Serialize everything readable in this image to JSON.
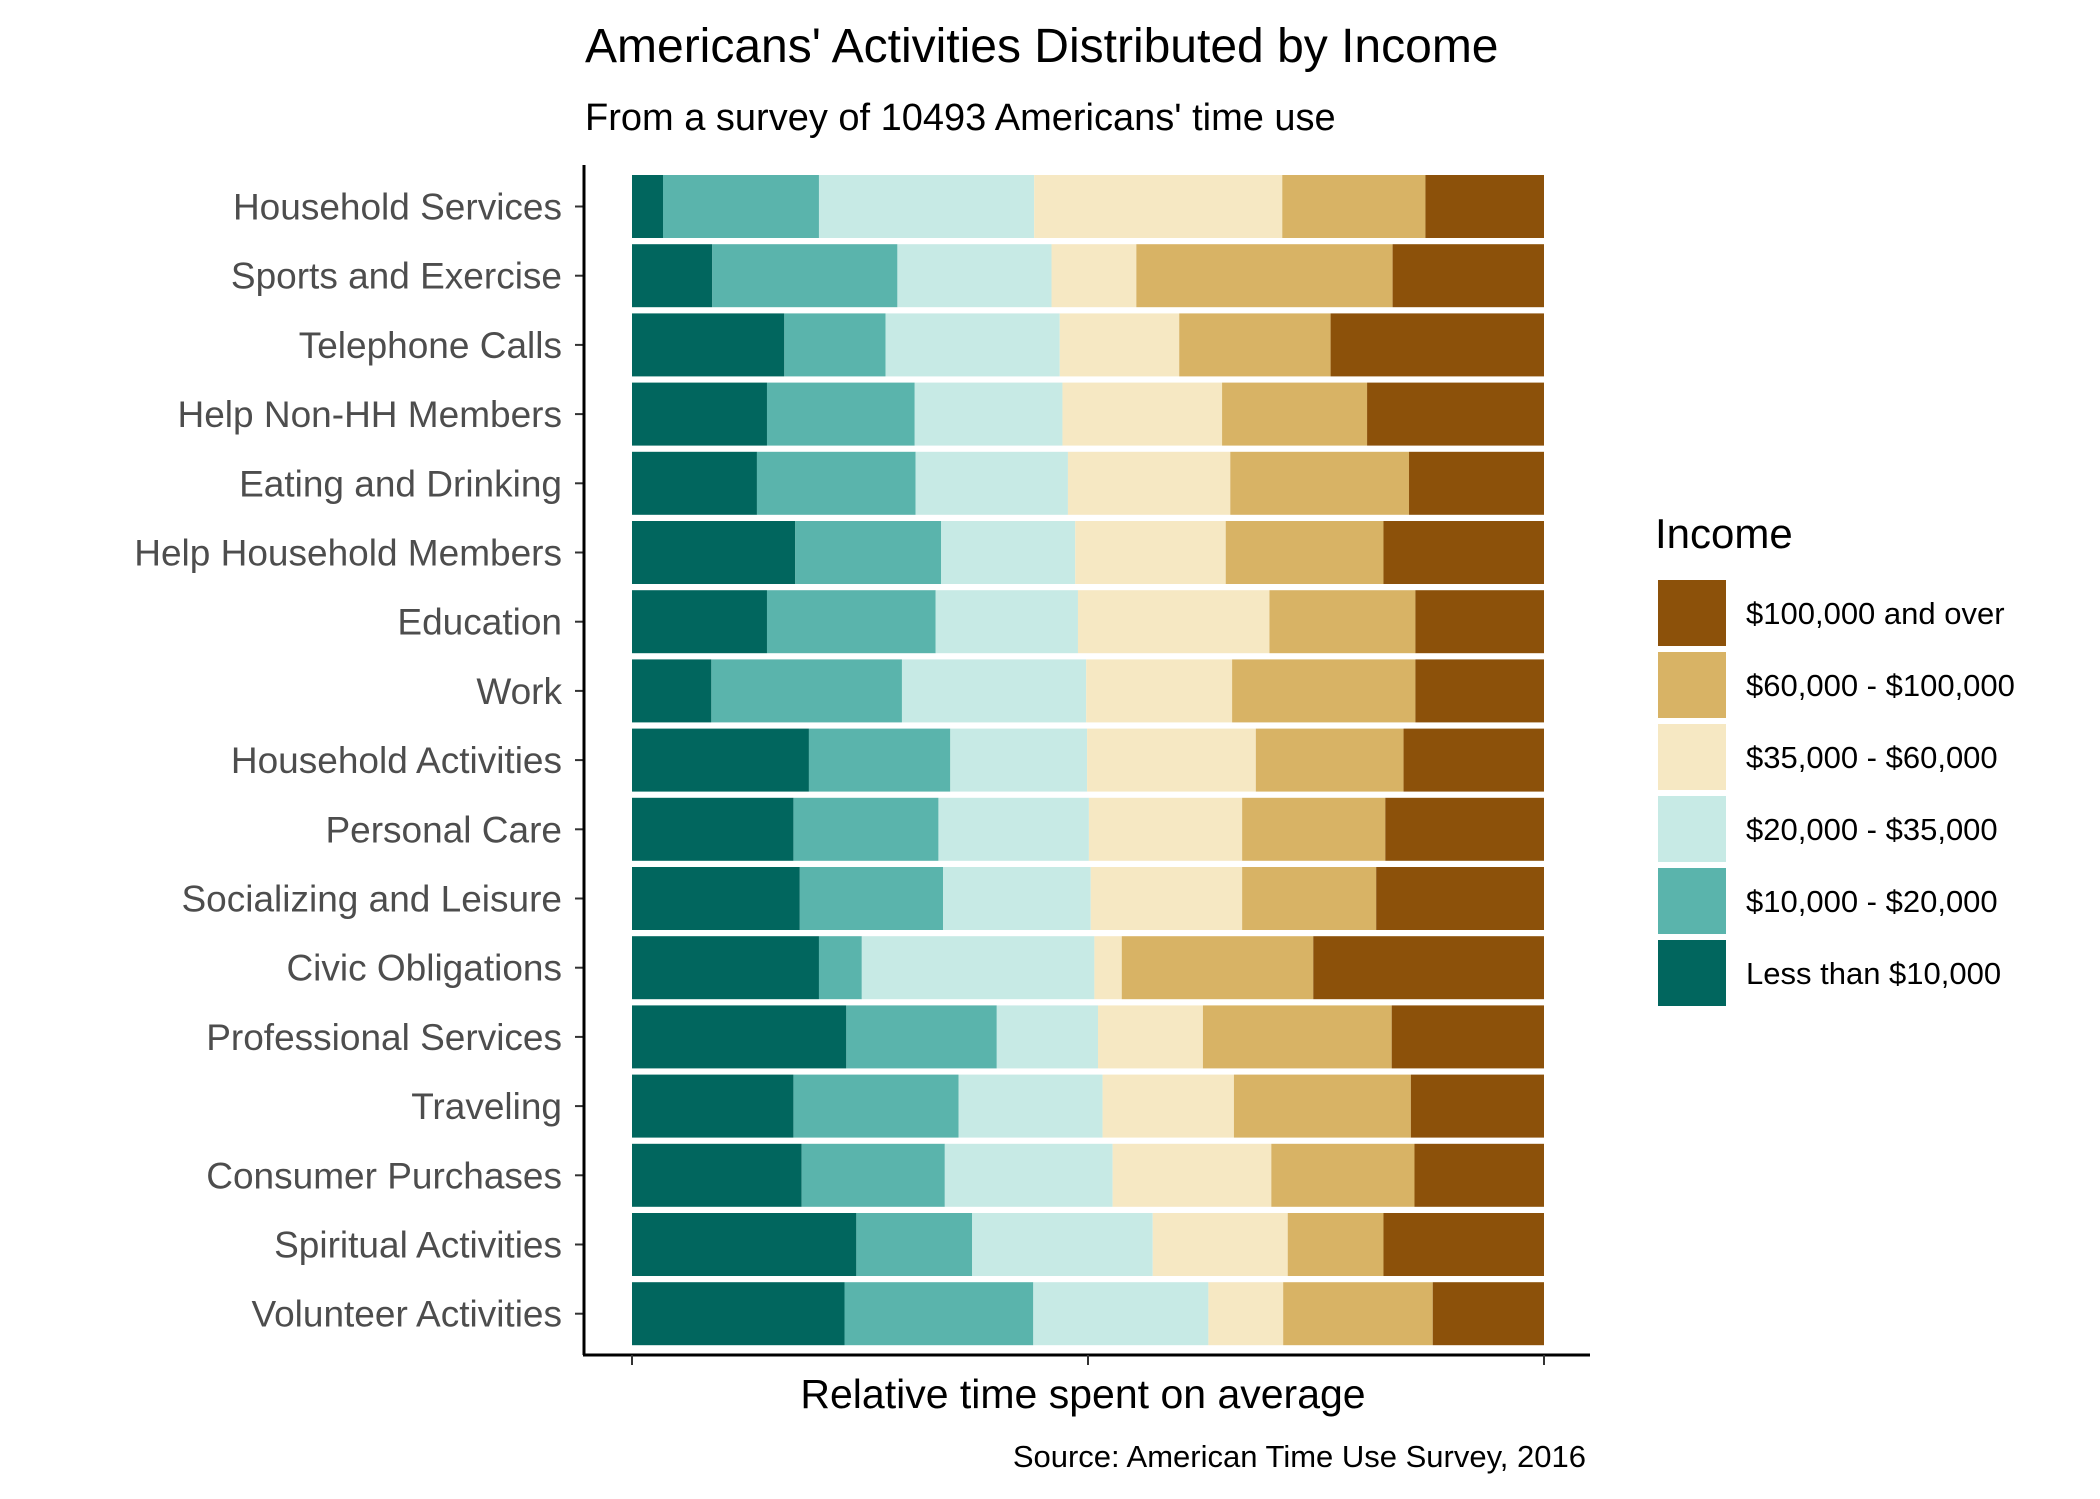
{
  "chart_data": {
    "type": "bar",
    "orientation": "horizontal",
    "stacked": "percent",
    "title": "Americans' Activities Distributed by Income",
    "subtitle": "From a survey of 10493 Americans' time use",
    "xlabel": "Relative time spent on average",
    "ylabel": "",
    "caption": "Source: American Time Use Survey, 2016",
    "xlim": [
      0,
      1
    ],
    "grid": false,
    "legend": {
      "title": "Income",
      "position": "right"
    },
    "categories": [
      "Household Services",
      "Sports and Exercise",
      "Telephone Calls",
      "Help Non-HH Members",
      "Eating and Drinking",
      "Help Household Members",
      "Education",
      "Work",
      "Household Activities",
      "Personal Care",
      "Socializing and Leisure",
      "Civic Obligations",
      "Professional Services",
      "Traveling",
      "Consumer Purchases",
      "Spiritual Activities",
      "Volunteer Activities"
    ],
    "series": [
      {
        "name": "Less than $10,000",
        "color": "#01665e",
        "values": [
          0.034,
          0.088,
          0.167,
          0.148,
          0.137,
          0.179,
          0.148,
          0.087,
          0.194,
          0.177,
          0.184,
          0.205,
          0.235,
          0.177,
          0.186,
          0.246,
          0.233
        ]
      },
      {
        "name": "$10,000 - $20,000",
        "color": "#5ab4ac",
        "values": [
          0.171,
          0.203,
          0.111,
          0.162,
          0.174,
          0.16,
          0.185,
          0.209,
          0.155,
          0.159,
          0.157,
          0.047,
          0.165,
          0.181,
          0.157,
          0.127,
          0.207
        ]
      },
      {
        "name": "$20,000 - $35,000",
        "color": "#c7eae5",
        "values": [
          0.236,
          0.169,
          0.191,
          0.162,
          0.167,
          0.147,
          0.156,
          0.202,
          0.15,
          0.165,
          0.162,
          0.255,
          0.111,
          0.158,
          0.184,
          0.198,
          0.192
        ]
      },
      {
        "name": "$35,000 - $60,000",
        "color": "#f6e8c3",
        "values": [
          0.272,
          0.093,
          0.131,
          0.175,
          0.178,
          0.165,
          0.21,
          0.16,
          0.185,
          0.168,
          0.166,
          0.03,
          0.115,
          0.144,
          0.174,
          0.148,
          0.082
        ]
      },
      {
        "name": "$60,000 - $100,000",
        "color": "#d8b365",
        "values": [
          0.157,
          0.281,
          0.166,
          0.159,
          0.196,
          0.173,
          0.16,
          0.201,
          0.162,
          0.157,
          0.147,
          0.21,
          0.207,
          0.194,
          0.157,
          0.105,
          0.164
        ]
      },
      {
        "name": "$100,000 and over",
        "color": "#8c510a",
        "values": [
          0.13,
          0.166,
          0.234,
          0.194,
          0.148,
          0.176,
          0.141,
          0.141,
          0.154,
          0.174,
          0.184,
          0.253,
          0.167,
          0.146,
          0.142,
          0.176,
          0.122
        ]
      }
    ]
  }
}
